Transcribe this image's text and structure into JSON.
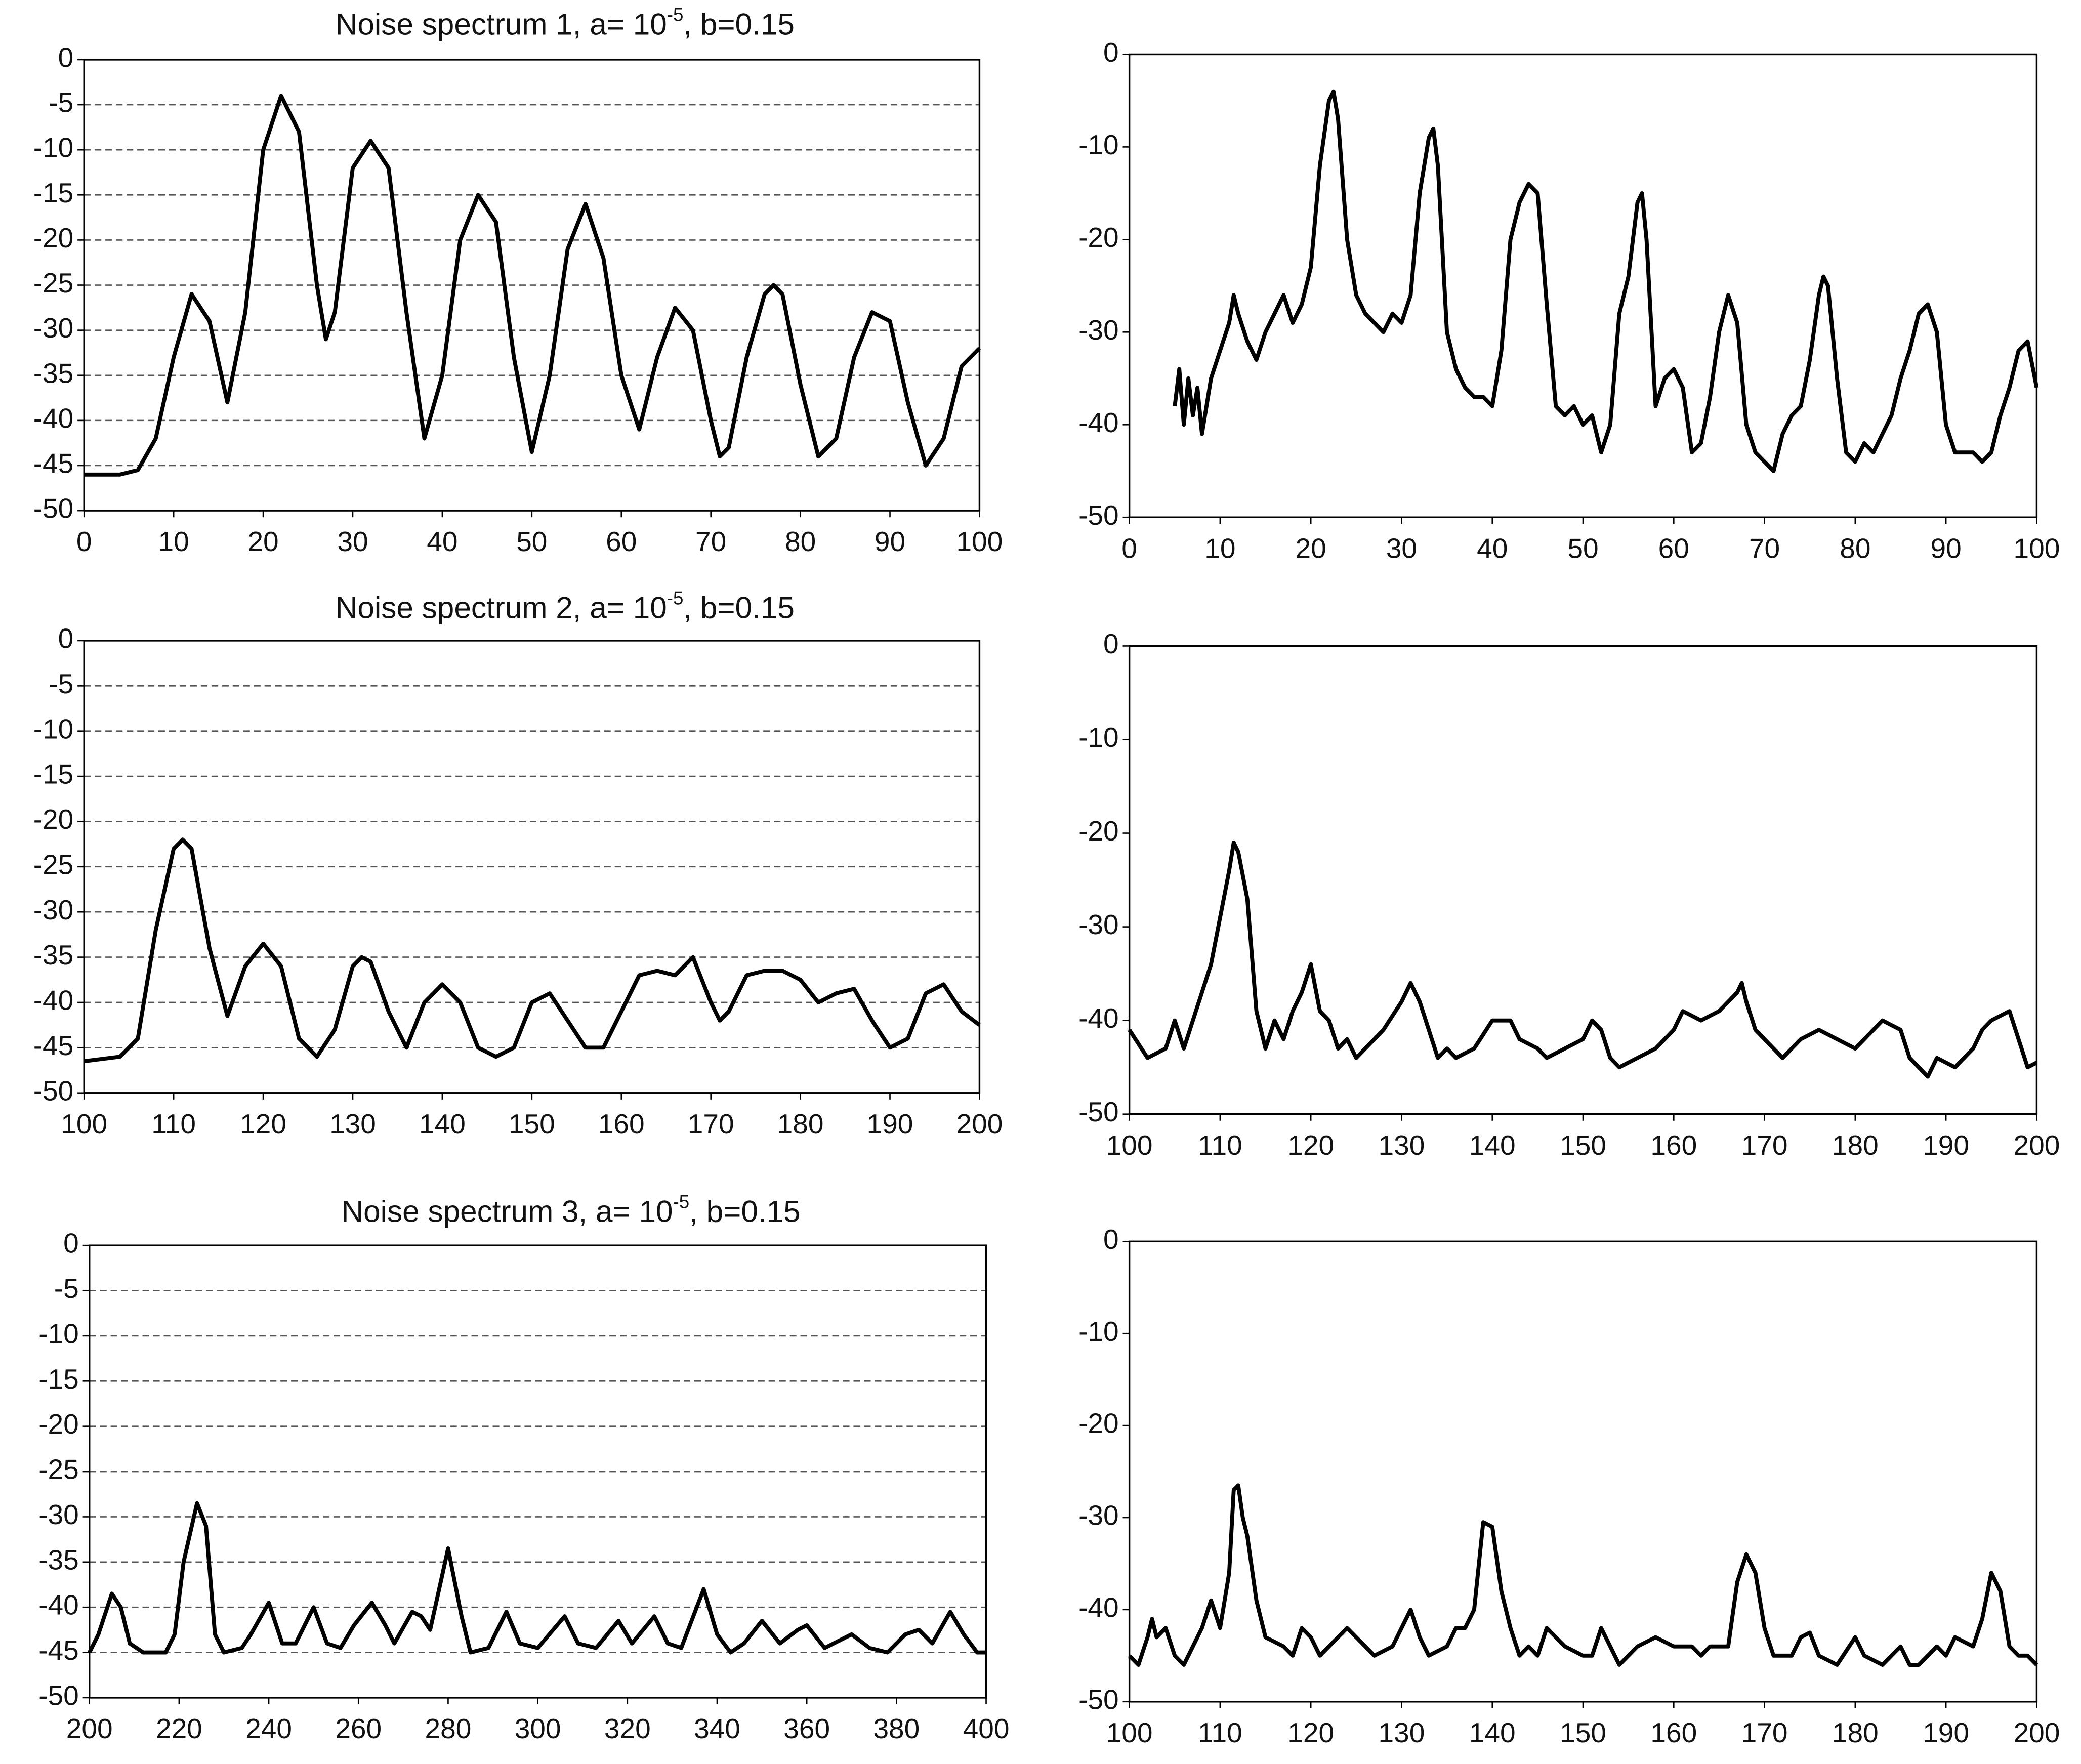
{
  "chart_data": [
    {
      "type": "line",
      "title": {
        "text": "Noise spectrum 1, a= 10",
        "superscript": "-5",
        "suffix": ", b=0.15"
      },
      "grid": true,
      "color": "#000000",
      "xlim": [
        0,
        100
      ],
      "xticks": [
        0,
        10,
        20,
        30,
        40,
        50,
        60,
        70,
        80,
        90,
        100
      ],
      "ylim": [
        -50,
        0
      ],
      "yticks": [
        0,
        -5,
        -10,
        -15,
        -20,
        -25,
        -30,
        -35,
        -40,
        -45,
        -50
      ],
      "x": [
        0,
        2,
        4,
        6,
        8,
        10,
        12,
        14,
        16,
        18,
        20,
        22,
        24,
        26,
        27,
        28,
        30,
        32,
        34,
        36,
        38,
        40,
        42,
        44,
        46,
        48,
        50,
        52,
        54,
        56,
        58,
        60,
        62,
        64,
        66,
        68,
        70,
        71,
        72,
        74,
        76,
        77,
        78,
        80,
        82,
        84,
        86,
        88,
        90,
        92,
        94,
        96,
        98,
        100
      ],
      "values": [
        -46,
        -46,
        -46,
        -45.5,
        -42,
        -33,
        -26,
        -29,
        -38,
        -28,
        -10,
        -4,
        -8,
        -25,
        -31,
        -28,
        -12,
        -9,
        -12,
        -28,
        -42,
        -35,
        -20,
        -15,
        -18,
        -33,
        -43.5,
        -35,
        -21,
        -16,
        -22,
        -35,
        -41,
        -33,
        -27.5,
        -30,
        -40,
        -44,
        -43,
        -33,
        -26,
        -25,
        -26,
        -36,
        -44,
        -42,
        -33,
        -28,
        -29,
        -38,
        -45,
        -42,
        -34,
        -32
      ]
    },
    {
      "type": "line",
      "grid": false,
      "color": "#000000",
      "xlim": [
        0,
        100
      ],
      "xticks": [
        0,
        10,
        20,
        30,
        40,
        50,
        60,
        70,
        80,
        90,
        100
      ],
      "ylim": [
        -50,
        0
      ],
      "yticks": [
        0,
        -10,
        -20,
        -30,
        -40,
        -50
      ],
      "x": [
        5,
        5.5,
        6,
        6.5,
        7,
        7.5,
        8,
        9,
        10,
        11,
        11.5,
        12,
        13,
        14,
        15,
        16,
        17,
        18,
        19,
        20,
        21,
        22,
        22.5,
        23,
        24,
        25,
        26,
        27,
        28,
        29,
        30,
        31,
        32,
        33,
        33.5,
        34,
        35,
        36,
        37,
        38,
        39,
        40,
        41,
        42,
        43,
        44,
        45,
        46,
        47,
        48,
        49,
        50,
        51,
        52,
        53,
        54,
        55,
        56,
        56.5,
        57,
        58,
        59,
        60,
        61,
        62,
        63,
        64,
        65,
        66,
        67,
        68,
        69,
        70,
        71,
        72,
        73,
        74,
        75,
        76,
        76.5,
        77,
        78,
        79,
        80,
        81,
        82,
        83,
        84,
        85,
        86,
        87,
        88,
        89,
        90,
        91,
        92,
        93,
        94,
        95,
        96,
        97,
        98,
        99,
        100
      ],
      "values": [
        -38,
        -34,
        -40,
        -35,
        -39,
        -36,
        -41,
        -35,
        -32,
        -29,
        -26,
        -28,
        -31,
        -33,
        -30,
        -28,
        -26,
        -29,
        -27,
        -23,
        -12,
        -5,
        -4,
        -7,
        -20,
        -26,
        -28,
        -29,
        -30,
        -28,
        -29,
        -26,
        -15,
        -9,
        -8,
        -12,
        -30,
        -34,
        -36,
        -37,
        -37,
        -38,
        -32,
        -20,
        -16,
        -14,
        -15,
        -27,
        -38,
        -39,
        -38,
        -40,
        -39,
        -43,
        -40,
        -28,
        -24,
        -16,
        -15,
        -20,
        -38,
        -35,
        -34,
        -36,
        -43,
        -42,
        -37,
        -30,
        -26,
        -29,
        -40,
        -43,
        -44,
        -45,
        -41,
        -39,
        -38,
        -33,
        -26,
        -24,
        -25,
        -35,
        -43,
        -44,
        -42,
        -43,
        -41,
        -39,
        -35,
        -32,
        -28,
        -27,
        -30,
        -40,
        -43,
        -43,
        -43,
        -44,
        -43,
        -39,
        -36,
        -32,
        -31,
        -36
      ]
    },
    {
      "type": "line",
      "title": {
        "text": "Noise spectrum 2, a= 10",
        "superscript": "-5",
        "suffix": ", b=0.15"
      },
      "grid": true,
      "color": "#000000",
      "xlim": [
        100,
        200
      ],
      "xticks": [
        100,
        110,
        120,
        130,
        140,
        150,
        160,
        170,
        180,
        190,
        200
      ],
      "ylim": [
        -50,
        0
      ],
      "yticks": [
        0,
        -5,
        -10,
        -15,
        -20,
        -25,
        -30,
        -35,
        -40,
        -45,
        -50
      ],
      "x": [
        100,
        104,
        106,
        108,
        110,
        111,
        112,
        114,
        116,
        118,
        120,
        122,
        124,
        126,
        128,
        130,
        131,
        132,
        134,
        136,
        138,
        140,
        142,
        144,
        146,
        148,
        150,
        152,
        154,
        156,
        158,
        160,
        162,
        164,
        166,
        168,
        170,
        171,
        172,
        174,
        176,
        178,
        180,
        182,
        184,
        186,
        188,
        190,
        192,
        194,
        196,
        198,
        200
      ],
      "values": [
        -46.5,
        -46,
        -44,
        -32,
        -23,
        -22,
        -23,
        -34,
        -41.5,
        -36,
        -33.5,
        -36,
        -44,
        -46,
        -43,
        -36,
        -35,
        -35.5,
        -41,
        -45,
        -40,
        -38,
        -40,
        -45,
        -46,
        -45,
        -40,
        -39,
        -42,
        -45,
        -45,
        -41,
        -37,
        -36.5,
        -37,
        -35,
        -40,
        -42,
        -41,
        -37,
        -36.5,
        -36.5,
        -37.5,
        -40,
        -39,
        -38.5,
        -42,
        -45,
        -44,
        -39,
        -38,
        -41,
        -42.5
      ]
    },
    {
      "type": "line",
      "grid": false,
      "color": "#000000",
      "xlim": [
        100,
        200
      ],
      "xticks": [
        100,
        110,
        120,
        130,
        140,
        150,
        160,
        170,
        180,
        190,
        200
      ],
      "ylim": [
        -50,
        0
      ],
      "yticks": [
        0,
        -10,
        -20,
        -30,
        -40,
        -50
      ],
      "x": [
        100,
        102,
        104,
        105,
        106,
        107,
        108,
        109,
        110,
        111,
        111.5,
        112,
        113,
        114,
        115,
        116,
        117,
        118,
        119,
        120,
        121,
        122,
        123,
        124,
        125,
        126,
        128,
        130,
        131,
        132,
        134,
        135,
        136,
        138,
        140,
        142,
        143,
        145,
        146,
        148,
        150,
        151,
        152,
        153,
        154,
        156,
        158,
        160,
        161,
        163,
        165,
        167,
        167.5,
        168,
        169,
        171,
        172,
        174,
        176,
        178,
        180,
        182,
        183,
        185,
        186,
        187,
        188,
        189,
        191,
        193,
        194,
        195,
        197,
        198,
        199,
        200
      ],
      "values": [
        -41,
        -44,
        -43,
        -40,
        -43,
        -40,
        -37,
        -34,
        -29,
        -24,
        -21,
        -22,
        -27,
        -39,
        -43,
        -40,
        -42,
        -39,
        -37,
        -34,
        -39,
        -40,
        -43,
        -42,
        -44,
        -43,
        -41,
        -38,
        -36,
        -38,
        -44,
        -43,
        -44,
        -43,
        -40,
        -40,
        -42,
        -43,
        -44,
        -43,
        -42,
        -40,
        -41,
        -44,
        -45,
        -44,
        -43,
        -41,
        -39,
        -40,
        -39,
        -37,
        -36,
        -38,
        -41,
        -43,
        -44,
        -42,
        -41,
        -42,
        -43,
        -41,
        -40,
        -41,
        -44,
        -45,
        -46,
        -44,
        -45,
        -43,
        -41,
        -40,
        -39,
        -42,
        -45,
        -44.5
      ]
    },
    {
      "type": "line",
      "title": {
        "text": "Noise spectrum 3, a= 10",
        "superscript": "-5",
        "suffix": ", b=0.15"
      },
      "grid": true,
      "color": "#000000",
      "xlim": [
        200,
        400
      ],
      "xticks": [
        200,
        220,
        240,
        260,
        280,
        300,
        320,
        340,
        360,
        380,
        400
      ],
      "ylim": [
        -50,
        0
      ],
      "yticks": [
        0,
        -5,
        -10,
        -15,
        -20,
        -25,
        -30,
        -35,
        -40,
        -45,
        -50
      ],
      "x": [
        200,
        202,
        205,
        207,
        209,
        212,
        217,
        219,
        221,
        224,
        226,
        228,
        230,
        234,
        236,
        240,
        243,
        246,
        250,
        253,
        256,
        259,
        263,
        266,
        268,
        272,
        274,
        276,
        280,
        283,
        285,
        289,
        293,
        296,
        300,
        306,
        309,
        313,
        318,
        321,
        326,
        329,
        332,
        337,
        340,
        343,
        346,
        350,
        354,
        358,
        360,
        364,
        370,
        374,
        378,
        382,
        385,
        388,
        392,
        395,
        398,
        400
      ],
      "values": [
        -45,
        -43,
        -38.5,
        -40,
        -44,
        -45,
        -45,
        -43,
        -35,
        -28.5,
        -31,
        -43,
        -45,
        -44.5,
        -43,
        -39.5,
        -44,
        -44,
        -40,
        -44,
        -44.5,
        -42,
        -39.5,
        -42,
        -44,
        -40.5,
        -41,
        -42.5,
        -33.5,
        -41,
        -45,
        -44.5,
        -40.5,
        -44,
        -44.5,
        -41,
        -44,
        -44.5,
        -41.5,
        -44,
        -41,
        -44,
        -44.5,
        -38,
        -43,
        -45,
        -44,
        -41.5,
        -44,
        -42.5,
        -42,
        -44.5,
        -43,
        -44.5,
        -45,
        -43,
        -42.5,
        -44,
        -40.5,
        -43,
        -45,
        -45
      ]
    },
    {
      "type": "line",
      "grid": false,
      "color": "#000000",
      "xlim": [
        100,
        200
      ],
      "xticks": [
        100,
        110,
        120,
        130,
        140,
        150,
        160,
        170,
        180,
        190,
        200
      ],
      "ylim": [
        -50,
        0
      ],
      "yticks": [
        0,
        -10,
        -20,
        -30,
        -40,
        -50
      ],
      "x": [
        100,
        101,
        102,
        102.5,
        103,
        104,
        105,
        106,
        107,
        108,
        109,
        110,
        111,
        111.5,
        112,
        112.5,
        113,
        114,
        115,
        117,
        118,
        119,
        120,
        121,
        122,
        124,
        125,
        127,
        129,
        130,
        131,
        132,
        133,
        135,
        136,
        137,
        138,
        139,
        140,
        141,
        142,
        143,
        144,
        145,
        146,
        148,
        150,
        151,
        152,
        153,
        154,
        156,
        158,
        160,
        162,
        163,
        164,
        166,
        167,
        168,
        169,
        170,
        171,
        173,
        174,
        175,
        176,
        178,
        180,
        181,
        183,
        185,
        186,
        187,
        189,
        190,
        191,
        193,
        194,
        195,
        196,
        197,
        198,
        199,
        200
      ],
      "values": [
        -45,
        -46,
        -43,
        -41,
        -43,
        -42,
        -45,
        -46,
        -44,
        -42,
        -39,
        -42,
        -36,
        -27,
        -26.5,
        -30,
        -32,
        -39,
        -43,
        -44,
        -45,
        -42,
        -43,
        -45,
        -44,
        -42,
        -43,
        -45,
        -44,
        -42,
        -40,
        -43,
        -45,
        -44,
        -42,
        -42,
        -40,
        -30.5,
        -31,
        -38,
        -42,
        -45,
        -44,
        -45,
        -42,
        -44,
        -45,
        -45,
        -42,
        -44,
        -46,
        -44,
        -43,
        -44,
        -44,
        -45,
        -44,
        -44,
        -37,
        -34,
        -36,
        -42,
        -45,
        -45,
        -43,
        -42.5,
        -45,
        -46,
        -43,
        -45,
        -46,
        -44,
        -46,
        -46,
        -44,
        -45,
        -43,
        -44,
        -41,
        -36,
        -38,
        -44,
        -45,
        -45,
        -46
      ]
    }
  ]
}
